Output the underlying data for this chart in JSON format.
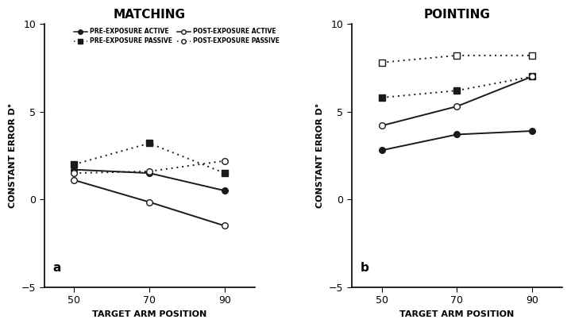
{
  "x": [
    50,
    70,
    90
  ],
  "matching": {
    "pre_active": [
      1.7,
      1.5,
      0.5
    ],
    "pre_passive": [
      2.0,
      3.2,
      1.5
    ],
    "post_active": [
      1.1,
      -0.15,
      -1.5
    ],
    "post_passive": [
      1.5,
      1.6,
      2.2
    ]
  },
  "pointing": {
    "pre_active": [
      2.8,
      3.7,
      3.9
    ],
    "pre_passive": [
      5.8,
      6.2,
      7.0
    ],
    "post_active": [
      4.2,
      5.3,
      7.0
    ],
    "post_passive": [
      7.8,
      8.2,
      8.2
    ]
  },
  "ylim": [
    -5,
    10
  ],
  "yticks": [
    -5,
    0,
    5,
    10
  ],
  "xticks": [
    50,
    70,
    90
  ],
  "xlabel": "TARGET ARM POSITION",
  "ylabel": "CONSTANT ERROR D°",
  "title_matching": "MATCHING",
  "title_pointing": "POINTING",
  "label_a": "a",
  "label_b": "b",
  "bg_color": "#ffffff",
  "line_color": "#1a1a1a"
}
